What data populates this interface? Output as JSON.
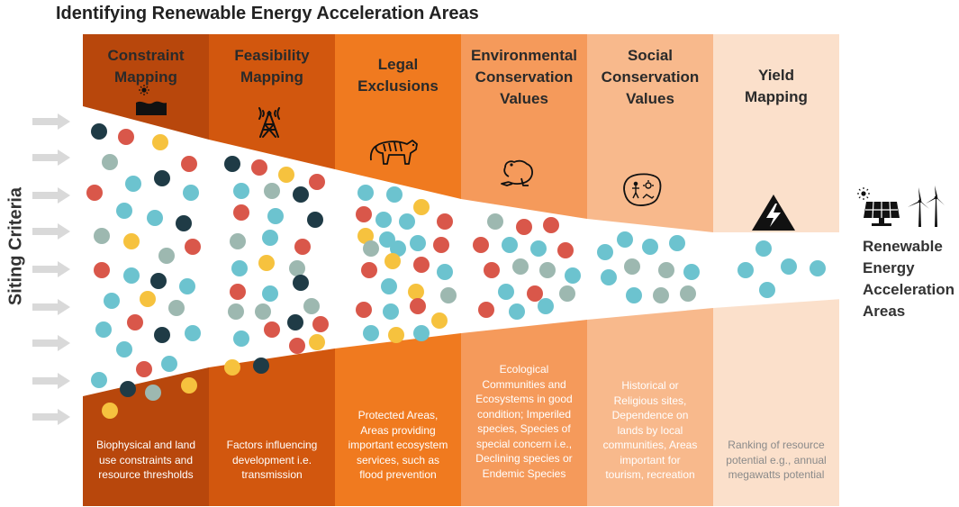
{
  "title": "Identifying Renewable Energy Acceleration Areas",
  "side_label": "Siting Criteria",
  "result_label": [
    "Renewable",
    "Energy",
    "Acceleration",
    "Areas"
  ],
  "columns": [
    {
      "heading": [
        "Constraint",
        "Mapping"
      ],
      "description": [
        "Biophysical and land",
        "use constraints and",
        "resource thresholds"
      ],
      "icon": "landscape-sun-icon",
      "color": "#B8470C",
      "text_color": "#2a2a2a",
      "foot_color": "#ffffff"
    },
    {
      "heading": [
        "Feasibility",
        "Mapping"
      ],
      "description": [
        "Factors influencing",
        "development i.e.",
        "transmission"
      ],
      "icon": "transmission-tower-icon",
      "color": "#D2570E",
      "text_color": "#2a2a2a",
      "foot_color": "#ffffff"
    },
    {
      "heading": [
        "Legal",
        "Exclusions"
      ],
      "description": [
        "Protected Areas,",
        "Areas providing",
        "important ecosystem",
        "services, such as",
        "flood prevention"
      ],
      "icon": "tiger-icon",
      "color": "#F07A1F",
      "text_color": "#2a2a2a",
      "foot_color": "#ffffff"
    },
    {
      "heading": [
        "Environmental",
        "Conservation",
        "Values"
      ],
      "description": [
        "Ecological",
        "Communities and",
        "Ecosystems in good",
        "condition; Imperiled",
        "species, Species of",
        "special concern i.e.,",
        "Declining species or",
        "Endemic Species"
      ],
      "icon": "frog-icon",
      "color": "#F59A5B",
      "text_color": "#2a2a2a",
      "foot_color": "#ffffff"
    },
    {
      "heading": [
        "Social",
        "Conservation",
        "Values"
      ],
      "description": [
        "Historical or",
        "Religious sites,",
        "Dependence on",
        "lands by local",
        "communities, Areas",
        "important for",
        "tourism, recreation"
      ],
      "icon": "cave-painting-icon",
      "color": "#F8B98C",
      "text_color": "#2a2a2a",
      "foot_color": "#ffffff"
    },
    {
      "heading": [
        "Yield",
        "Mapping"
      ],
      "description": [
        "Ranking of resource",
        "potential e.g., annual",
        "megawatts potential"
      ],
      "icon": "high-voltage-icon",
      "color": "#FBE0CB",
      "text_color": "#2a2a2a",
      "foot_color": "#8a8a8a"
    }
  ],
  "dot_colors": {
    "teal": "#6CC3CF",
    "red": "#D9574A",
    "yellow": "#F6C23E",
    "sage": "#9DB8B0",
    "navy": "#1F3B46"
  },
  "arrow_color": "#D9D9D9",
  "result_icons": [
    "solar-panel-icon",
    "wind-turbine-icon"
  ]
}
